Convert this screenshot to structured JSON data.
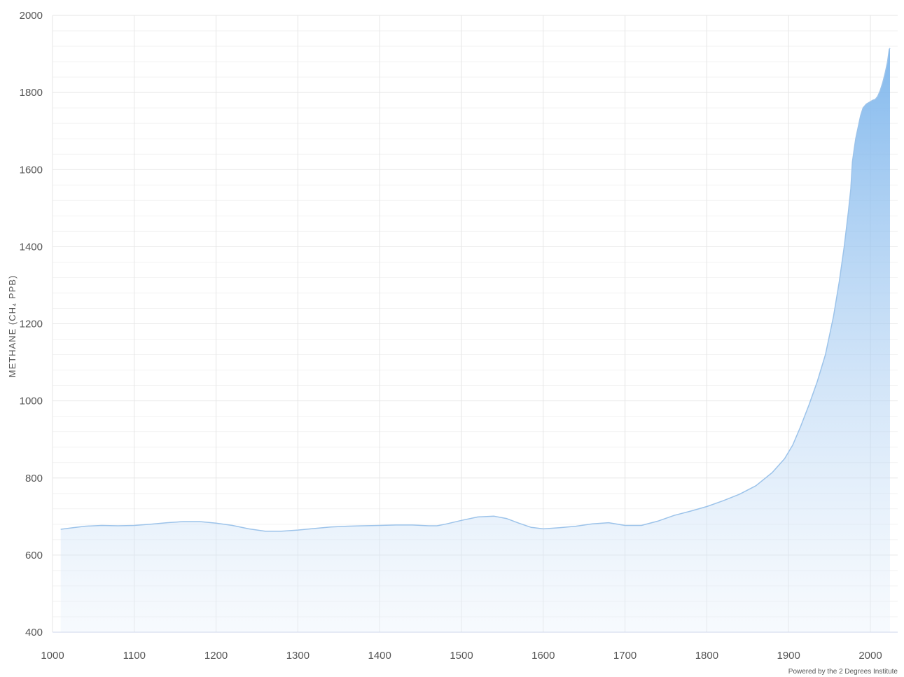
{
  "chart_data": {
    "type": "area",
    "title": "",
    "xlabel": "",
    "ylabel": "METHANE (CH₄ PPB)",
    "xlim": [
      1000,
      2030
    ],
    "ylim": [
      400,
      2000
    ],
    "grid": true,
    "xticks": [
      "1000",
      "1100",
      "1200",
      "1300",
      "1400",
      "1500",
      "1600",
      "1700",
      "1800",
      "1900",
      "2000"
    ],
    "yticks": [
      "400",
      "600",
      "800",
      "1000",
      "1200",
      "1400",
      "1600",
      "1800",
      "2000"
    ],
    "colors": {
      "fill_top": "#7cb5ec",
      "line": "#9cc3ea",
      "grid": "#e6e6e6",
      "text": "#555555"
    },
    "series": [
      {
        "points": [
          [
            1010,
            667
          ],
          [
            1025,
            671
          ],
          [
            1040,
            675
          ],
          [
            1060,
            677
          ],
          [
            1080,
            676
          ],
          [
            1100,
            677
          ],
          [
            1120,
            680
          ],
          [
            1140,
            684
          ],
          [
            1160,
            687
          ],
          [
            1180,
            687
          ],
          [
            1200,
            683
          ],
          [
            1220,
            677
          ],
          [
            1240,
            668
          ],
          [
            1260,
            662
          ],
          [
            1280,
            662
          ],
          [
            1300,
            665
          ],
          [
            1320,
            669
          ],
          [
            1340,
            673
          ],
          [
            1360,
            675
          ],
          [
            1380,
            676
          ],
          [
            1400,
            677
          ],
          [
            1420,
            678
          ],
          [
            1440,
            678
          ],
          [
            1460,
            676
          ],
          [
            1470,
            676
          ],
          [
            1480,
            680
          ],
          [
            1500,
            690
          ],
          [
            1520,
            699
          ],
          [
            1540,
            701
          ],
          [
            1555,
            695
          ],
          [
            1570,
            683
          ],
          [
            1585,
            672
          ],
          [
            1600,
            668
          ],
          [
            1620,
            671
          ],
          [
            1640,
            675
          ],
          [
            1660,
            681
          ],
          [
            1680,
            684
          ],
          [
            1700,
            677
          ],
          [
            1720,
            677
          ],
          [
            1740,
            688
          ],
          [
            1760,
            703
          ],
          [
            1780,
            714
          ],
          [
            1800,
            726
          ],
          [
            1820,
            741
          ],
          [
            1840,
            758
          ],
          [
            1860,
            780
          ],
          [
            1880,
            814
          ],
          [
            1895,
            850
          ],
          [
            1905,
            885
          ],
          [
            1915,
            935
          ],
          [
            1925,
            990
          ],
          [
            1935,
            1050
          ],
          [
            1945,
            1120
          ],
          [
            1955,
            1220
          ],
          [
            1962,
            1310
          ],
          [
            1968,
            1400
          ],
          [
            1973,
            1490
          ],
          [
            1976,
            1550
          ],
          [
            1978,
            1620
          ],
          [
            1980,
            1650
          ],
          [
            1982,
            1680
          ],
          [
            1985,
            1710
          ],
          [
            1988,
            1740
          ],
          [
            1991,
            1760
          ],
          [
            1995,
            1770
          ],
          [
            1999,
            1775
          ],
          [
            2003,
            1780
          ],
          [
            2006,
            1782
          ],
          [
            2009,
            1790
          ],
          [
            2012,
            1805
          ],
          [
            2015,
            1825
          ],
          [
            2018,
            1850
          ],
          [
            2021,
            1880
          ],
          [
            2023,
            1912
          ],
          [
            2024,
            1915
          ]
        ]
      }
    ],
    "credit": "Powered by the 2 Degrees Institute"
  }
}
